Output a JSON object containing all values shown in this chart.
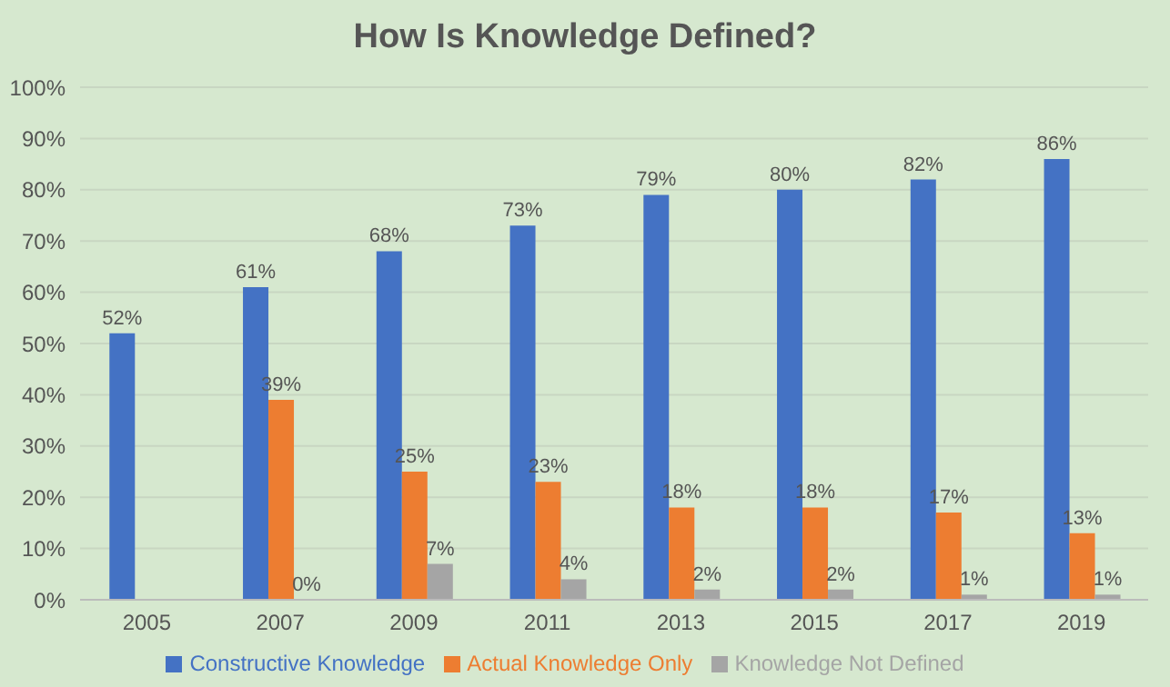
{
  "chart_data": {
    "type": "bar",
    "title": "How Is Knowledge Defined?",
    "categories": [
      "2005",
      "2007",
      "2009",
      "2011",
      "2013",
      "2015",
      "2017",
      "2019"
    ],
    "series": [
      {
        "name": "Constructive Knowledge",
        "color": "#4472c4",
        "values": [
          52,
          61,
          68,
          73,
          79,
          80,
          82,
          86
        ],
        "value_labels": [
          "52%",
          "61%",
          "68%",
          "73%",
          "79%",
          "80%",
          "82%",
          "86%"
        ]
      },
      {
        "name": "Actual Knowledge Only",
        "color": "#ed7d31",
        "values": [
          null,
          39,
          25,
          23,
          18,
          18,
          17,
          13
        ],
        "value_labels": [
          null,
          "39%",
          "25%",
          "23%",
          "18%",
          "18%",
          "17%",
          "13%"
        ]
      },
      {
        "name": "Knowledge Not Defined",
        "color": "#a5a5a5",
        "values": [
          null,
          0,
          7,
          4,
          2,
          2,
          1,
          1
        ],
        "value_labels": [
          null,
          "0%",
          "7%",
          "4%",
          "2%",
          "2%",
          "1%",
          "1%"
        ]
      }
    ],
    "ylim": [
      0,
      100
    ],
    "yticks": [
      {
        "value": 0,
        "label": "0%"
      },
      {
        "value": 10,
        "label": "10%"
      },
      {
        "value": 20,
        "label": "20%"
      },
      {
        "value": 30,
        "label": "30%"
      },
      {
        "value": 40,
        "label": "40%"
      },
      {
        "value": 50,
        "label": "50%"
      },
      {
        "value": 60,
        "label": "60%"
      },
      {
        "value": 70,
        "label": "70%"
      },
      {
        "value": 80,
        "label": "80%"
      },
      {
        "value": 90,
        "label": "90%"
      },
      {
        "value": 100,
        "label": "100%"
      }
    ],
    "grid": "y",
    "legend": "bottom"
  }
}
